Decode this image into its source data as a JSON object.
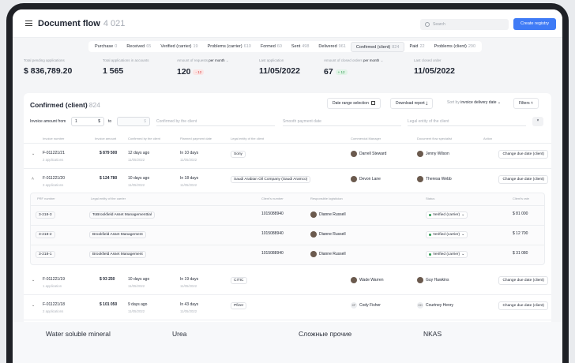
{
  "header": {
    "title": "Document flow",
    "count": "4 021",
    "search_placeholder": "Search",
    "create_label": "Create registry"
  },
  "tabs": [
    {
      "label": "Purchase",
      "count": "0"
    },
    {
      "label": "Received",
      "count": "65"
    },
    {
      "label": "Verified (carrier)",
      "count": "19"
    },
    {
      "label": "Problems (carrier)",
      "count": "610"
    },
    {
      "label": "Formed",
      "count": "60"
    },
    {
      "label": "Sent",
      "count": "498"
    },
    {
      "label": "Delivered",
      "count": "961"
    },
    {
      "label": "Confirmed (client)",
      "count": "824"
    },
    {
      "label": "Paid",
      "count": "22"
    },
    {
      "label": "Problems (client)",
      "count": "290"
    }
  ],
  "stats": [
    {
      "label": "Total pending applications",
      "value": "$ 836,789.20"
    },
    {
      "label": "Total applications in accounts",
      "value": "1 565"
    },
    {
      "label": "Amount of requests",
      "label_period": "per month",
      "value": "120",
      "delta": "- 12"
    },
    {
      "label": "Last application",
      "value": "11/05/2022"
    },
    {
      "label": "Amount of closed orders",
      "label_period": "per month",
      "value": "67",
      "delta": "+ 12"
    },
    {
      "label": "Last closed order",
      "value": "11/05/2022"
    }
  ],
  "panel": {
    "title": "Confirmed (client)",
    "count": "824",
    "date_range": "Date range selection",
    "download": "Download report",
    "sort_prefix": "Sort by",
    "sort_value": "invoice delivery date",
    "filters": "Filters",
    "amount_from_label": "Invoice amount from",
    "amount_from": "1",
    "currency": "$",
    "to_label": "to",
    "to_currency": "$",
    "confirmed_placeholder": "Confirmed by the client",
    "payment_placeholder": "Smooth payment date",
    "legal_placeholder": "Legal entity of the client"
  },
  "columns": [
    "Invoice number",
    "Invoice amount",
    "Confirmed by the client",
    "Planned payment date",
    "Legal entity of the client",
    "Commercial Manager",
    "Document flow specialist",
    "Action"
  ],
  "rows": [
    {
      "invoice": "F-011221/21",
      "apps": "2 applications",
      "amount": "$ 879 500",
      "confirmed": "12 days ago",
      "confirmed_date": "11/05/2022",
      "planned": "In 10 days",
      "planned_date": "11/05/2022",
      "entity": "Sony",
      "manager": "Darrell Steward",
      "specialist": "Jenny Wilson",
      "action": "Change due date (client)"
    },
    {
      "invoice": "F-011221/20",
      "apps": "3 applications",
      "amount": "$ 124 780",
      "confirmed": "10 days ago",
      "confirmed_date": "11/05/2022",
      "planned": "In 18 days",
      "planned_date": "11/05/2022",
      "entity": "Saudi Arabian Oil Company (Saudi Aramco)",
      "manager": "Devon Lane",
      "specialist": "Theresa Webb",
      "action": "Change due date (client)"
    },
    {
      "invoice": "F-011221/19",
      "apps": "1 application",
      "amount": "$ 93 250",
      "confirmed": "10 days ago",
      "confirmed_date": "11/05/2022",
      "planned": "In 19 days",
      "planned_date": "11/05/2022",
      "entity": "CITIC",
      "manager": "Wade Warren",
      "specialist": "Guy Hawkins",
      "action": "Change due date (client)"
    },
    {
      "invoice": "F-011221/18",
      "apps": "2 applications",
      "amount": "$ 101 050",
      "confirmed": "9 days ago",
      "confirmed_date": "11/05/2022",
      "planned": "In 43 days",
      "planned_date": "11/05/2022",
      "entity": "Pfizer",
      "manager": "Cody Fisher",
      "manager_initials": "CF",
      "specialist": "Courtney Henry",
      "specialist_initials": "CH",
      "action": "Change due date (client)"
    }
  ],
  "nested_columns": [
    "PRF number",
    "Legal entity of the carrier",
    "Client's number",
    "Responsible logistician",
    "Status",
    "Client's rate"
  ],
  "nested_rows": [
    {
      "prf": "3-218-3",
      "carrier": "ToBrookfield Asset Managementtial",
      "client_no": "1015088940",
      "logistician": "Dianne Russell",
      "status": "Verified (carrier)",
      "rate": "$ 81 000"
    },
    {
      "prf": "3-218-2",
      "carrier": "Brookfield Asset Management",
      "client_no": "1015088940",
      "logistician": "Dianne Russell",
      "status": "Verified (carrier)",
      "rate": "$ 12 700"
    },
    {
      "prf": "3-218-1",
      "carrier": "Brookfield Asset Management",
      "client_no": "1015088940",
      "logistician": "Dianne Russell",
      "status": "Verified (carrier)",
      "rate": "$ 31 080"
    }
  ],
  "footer": [
    "Water soluble mineral",
    "Urea",
    "Сложные прочие",
    "NKAS"
  ]
}
